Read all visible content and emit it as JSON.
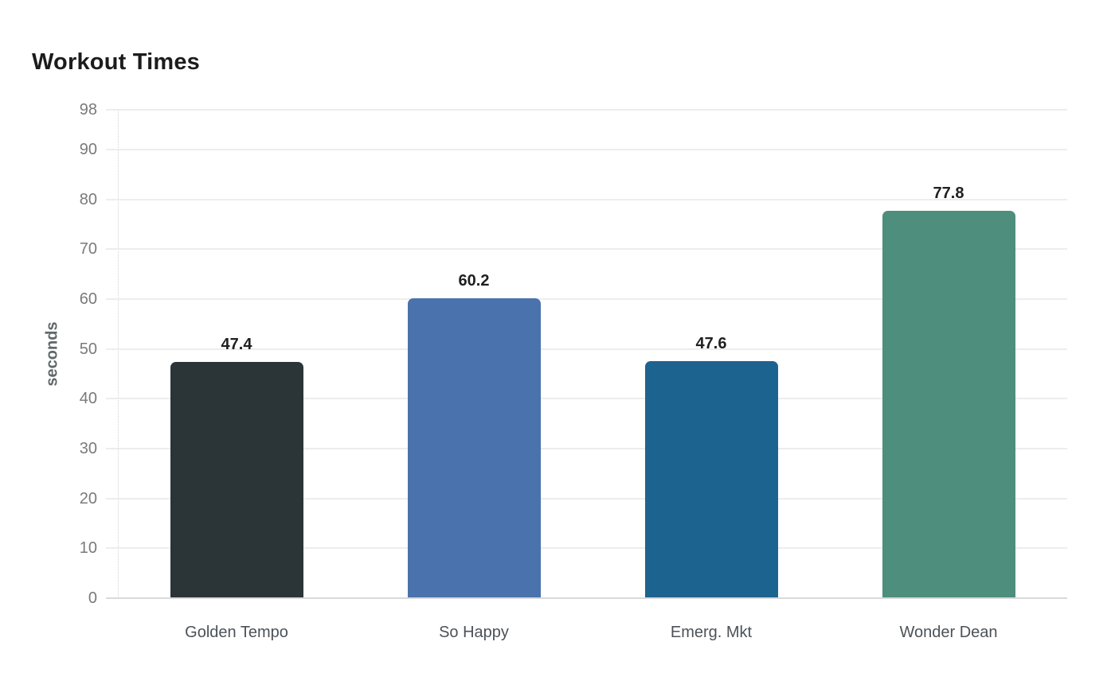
{
  "chart_data": {
    "type": "bar",
    "title": "Workout Times",
    "ylabel": "seconds",
    "xlabel": "",
    "categories": [
      "Golden Tempo",
      "So Happy",
      "Emerg. Mkt",
      "Wonder Dean"
    ],
    "values": [
      47.4,
      60.2,
      47.6,
      77.8
    ],
    "value_labels": [
      "47.4",
      "60.2",
      "47.6",
      "77.8"
    ],
    "bar_colors": [
      "#2b3538",
      "#4a72ad",
      "#1d6390",
      "#4d8e7c"
    ],
    "yticks": [
      0,
      10,
      20,
      30,
      40,
      50,
      60,
      70,
      80,
      90,
      98
    ],
    "ylim": [
      0,
      98
    ],
    "grid": "horizontal",
    "legend": "none",
    "style": {
      "background": "#ffffff",
      "gridline_color": "#ededed",
      "baseline_color": "#d9d9d9",
      "axis_line_color": "#d4d4d4",
      "tick_label_color": "#7a7a7a",
      "x_label_color": "#4c5257",
      "value_label_color": "#1f1f1f",
      "title_color": "#1c1c1c",
      "ylabel_color": "#5f686b"
    }
  }
}
